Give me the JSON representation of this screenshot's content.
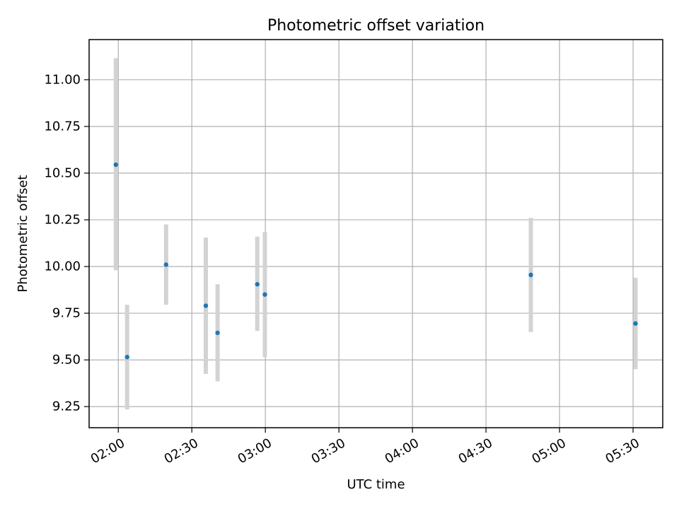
{
  "chart_data": {
    "type": "scatter",
    "title": "Photometric offset variation",
    "xlabel": "UTC time",
    "ylabel": "Photometric offset",
    "grid": true,
    "x_ticks": [
      {
        "minutes": 120,
        "label": "02:00"
      },
      {
        "minutes": 150,
        "label": "02:30"
      },
      {
        "minutes": 180,
        "label": "03:00"
      },
      {
        "minutes": 210,
        "label": "03:30"
      },
      {
        "minutes": 240,
        "label": "04:00"
      },
      {
        "minutes": 270,
        "label": "04:30"
      },
      {
        "minutes": 300,
        "label": "05:00"
      },
      {
        "minutes": 330,
        "label": "05:30"
      }
    ],
    "y_ticks": [
      {
        "value": 9.25,
        "label": "9.25"
      },
      {
        "value": 9.5,
        "label": "9.50"
      },
      {
        "value": 9.75,
        "label": "9.75"
      },
      {
        "value": 10.0,
        "label": "10.00"
      },
      {
        "value": 10.25,
        "label": "10.25"
      },
      {
        "value": 10.5,
        "label": "10.50"
      },
      {
        "value": 10.75,
        "label": "10.75"
      },
      {
        "value": 11.0,
        "label": "11.00"
      }
    ],
    "xlim_minutes": [
      108.1,
      342.1
    ],
    "ylim": [
      9.137,
      11.215
    ],
    "point_color": "#1f77b4",
    "errorbar_color": "#d3d3d3",
    "points": [
      {
        "time": "01:59",
        "minutes": 119.0,
        "y": 10.545,
        "y_low": 9.98,
        "y_high": 11.115
      },
      {
        "time": "02:04",
        "minutes": 123.6,
        "y": 9.515,
        "y_low": 9.235,
        "y_high": 9.795
      },
      {
        "time": "02:19",
        "minutes": 139.5,
        "y": 10.01,
        "y_low": 9.795,
        "y_high": 10.225
      },
      {
        "time": "02:36",
        "minutes": 155.7,
        "y": 9.79,
        "y_low": 9.425,
        "y_high": 10.155
      },
      {
        "time": "02:41",
        "minutes": 160.5,
        "y": 9.645,
        "y_low": 9.385,
        "y_high": 9.905
      },
      {
        "time": "02:56",
        "minutes": 176.7,
        "y": 9.905,
        "y_low": 9.655,
        "y_high": 10.16
      },
      {
        "time": "02:59",
        "minutes": 179.8,
        "y": 9.85,
        "y_low": 9.515,
        "y_high": 10.185
      },
      {
        "time": "04:48",
        "minutes": 288.3,
        "y": 9.955,
        "y_low": 9.65,
        "y_high": 10.26
      },
      {
        "time": "05:31",
        "minutes": 331.0,
        "y": 9.695,
        "y_low": 9.45,
        "y_high": 9.94
      }
    ]
  }
}
